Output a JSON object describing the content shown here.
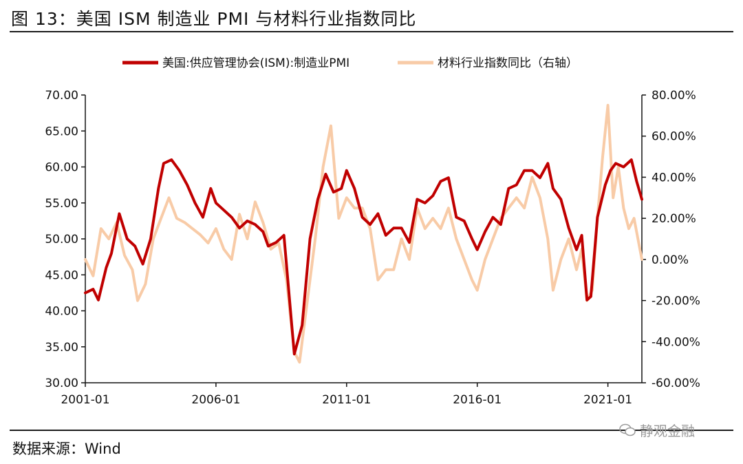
{
  "header": {
    "title": "图 13：美国 ISM 制造业 PMI 与材料行业指数同比"
  },
  "footer": {
    "source": "数据来源：Wind",
    "watermark": "静观金融"
  },
  "chart_data": {
    "type": "line",
    "title": "图 13：美国 ISM 制造业 PMI 与材料行业指数同比",
    "x_ticks": [
      "2001-01",
      "2006-01",
      "2011-01",
      "2016-01",
      "2021-01"
    ],
    "x_range": [
      2001.0,
      2022.3
    ],
    "ylim_left": [
      30,
      70
    ],
    "ylim_right": [
      -60,
      80
    ],
    "y_ticks_left": [
      "70.00",
      "65.00",
      "60.00",
      "55.00",
      "50.00",
      "45.00",
      "40.00",
      "35.00",
      "30.00"
    ],
    "y_ticks_right": [
      "80.00%",
      "60.00%",
      "40.00%",
      "20.00%",
      "0.00%",
      "-20.00%",
      "-40.00%",
      "-60.00%"
    ],
    "legend_position": "top",
    "colors": {
      "pmi": "#c00000",
      "materials": "#f8cba7",
      "axis": "#111111"
    },
    "series": [
      {
        "name": "美国:供应管理协会(ISM):制造业PMI",
        "axis": "left",
        "x": [
          2001.0,
          2001.3,
          2001.5,
          2001.8,
          2002.0,
          2002.3,
          2002.6,
          2002.9,
          2003.2,
          2003.5,
          2003.8,
          2004.0,
          2004.3,
          2004.6,
          2004.9,
          2005.2,
          2005.5,
          2005.8,
          2006.0,
          2006.3,
          2006.6,
          2006.9,
          2007.2,
          2007.5,
          2007.8,
          2008.0,
          2008.3,
          2008.6,
          2008.9,
          2009.0,
          2009.3,
          2009.6,
          2009.9,
          2010.2,
          2010.5,
          2010.8,
          2011.0,
          2011.3,
          2011.6,
          2011.9,
          2012.2,
          2012.5,
          2012.8,
          2013.1,
          2013.4,
          2013.7,
          2014.0,
          2014.3,
          2014.6,
          2014.9,
          2015.2,
          2015.5,
          2015.8,
          2016.0,
          2016.3,
          2016.6,
          2016.9,
          2017.2,
          2017.5,
          2017.8,
          2018.1,
          2018.4,
          2018.7,
          2018.9,
          2019.2,
          2019.5,
          2019.8,
          2020.0,
          2020.2,
          2020.35,
          2020.6,
          2020.9,
          2021.1,
          2021.3,
          2021.6,
          2021.9,
          2022.1,
          2022.3
        ],
        "values": [
          42.5,
          43.0,
          41.5,
          46.0,
          48.0,
          53.5,
          50.0,
          49.0,
          46.5,
          50.0,
          57.0,
          60.5,
          61.0,
          59.5,
          57.5,
          55.0,
          53.0,
          57.0,
          55.0,
          54.0,
          53.0,
          51.5,
          52.5,
          52.0,
          51.0,
          49.0,
          49.5,
          50.5,
          38.0,
          34.0,
          38.0,
          50.0,
          55.5,
          59.0,
          56.5,
          57.0,
          59.5,
          57.0,
          53.0,
          52.0,
          53.5,
          50.5,
          51.5,
          51.5,
          49.5,
          55.5,
          55.0,
          56.0,
          58.0,
          58.5,
          53.0,
          52.5,
          50.0,
          48.5,
          51.0,
          53.0,
          52.0,
          57.0,
          57.5,
          59.5,
          59.5,
          58.5,
          60.5,
          57.0,
          55.5,
          51.5,
          48.5,
          50.5,
          41.5,
          42.0,
          53.0,
          57.5,
          59.5,
          60.5,
          60.0,
          61.0,
          58.0,
          55.5
        ]
      },
      {
        "name": "材料行业指数同比（右轴）",
        "axis": "right",
        "x": [
          2001.0,
          2001.3,
          2001.6,
          2001.9,
          2002.2,
          2002.5,
          2002.8,
          2003.0,
          2003.3,
          2003.6,
          2003.9,
          2004.2,
          2004.5,
          2004.8,
          2005.1,
          2005.4,
          2005.7,
          2006.0,
          2006.3,
          2006.6,
          2006.9,
          2007.2,
          2007.5,
          2007.8,
          2008.1,
          2008.4,
          2008.7,
          2009.0,
          2009.2,
          2009.5,
          2009.8,
          2010.1,
          2010.4,
          2010.7,
          2011.0,
          2011.3,
          2011.6,
          2011.9,
          2012.2,
          2012.5,
          2012.8,
          2013.1,
          2013.4,
          2013.7,
          2014.0,
          2014.3,
          2014.6,
          2014.9,
          2015.2,
          2015.5,
          2015.8,
          2016.0,
          2016.3,
          2016.6,
          2016.9,
          2017.2,
          2017.5,
          2017.8,
          2018.1,
          2018.4,
          2018.7,
          2018.9,
          2019.2,
          2019.5,
          2019.8,
          2020.0,
          2020.2,
          2020.4,
          2020.6,
          2020.8,
          2021.0,
          2021.2,
          2021.4,
          2021.6,
          2021.8,
          2022.0,
          2022.3
        ],
        "values": [
          0,
          -8,
          15,
          10,
          18,
          2,
          -5,
          -20,
          -12,
          10,
          20,
          30,
          20,
          18,
          15,
          12,
          8,
          15,
          5,
          0,
          22,
          10,
          28,
          18,
          5,
          8,
          -10,
          -45,
          -50,
          -20,
          10,
          45,
          65,
          20,
          30,
          25,
          25,
          15,
          -10,
          -5,
          -5,
          10,
          0,
          25,
          15,
          20,
          15,
          25,
          10,
          0,
          -10,
          -15,
          0,
          10,
          20,
          25,
          30,
          25,
          40,
          30,
          10,
          -15,
          0,
          10,
          -5,
          5,
          -20,
          -15,
          20,
          50,
          75,
          30,
          45,
          25,
          15,
          20,
          0
        ]
      }
    ]
  }
}
